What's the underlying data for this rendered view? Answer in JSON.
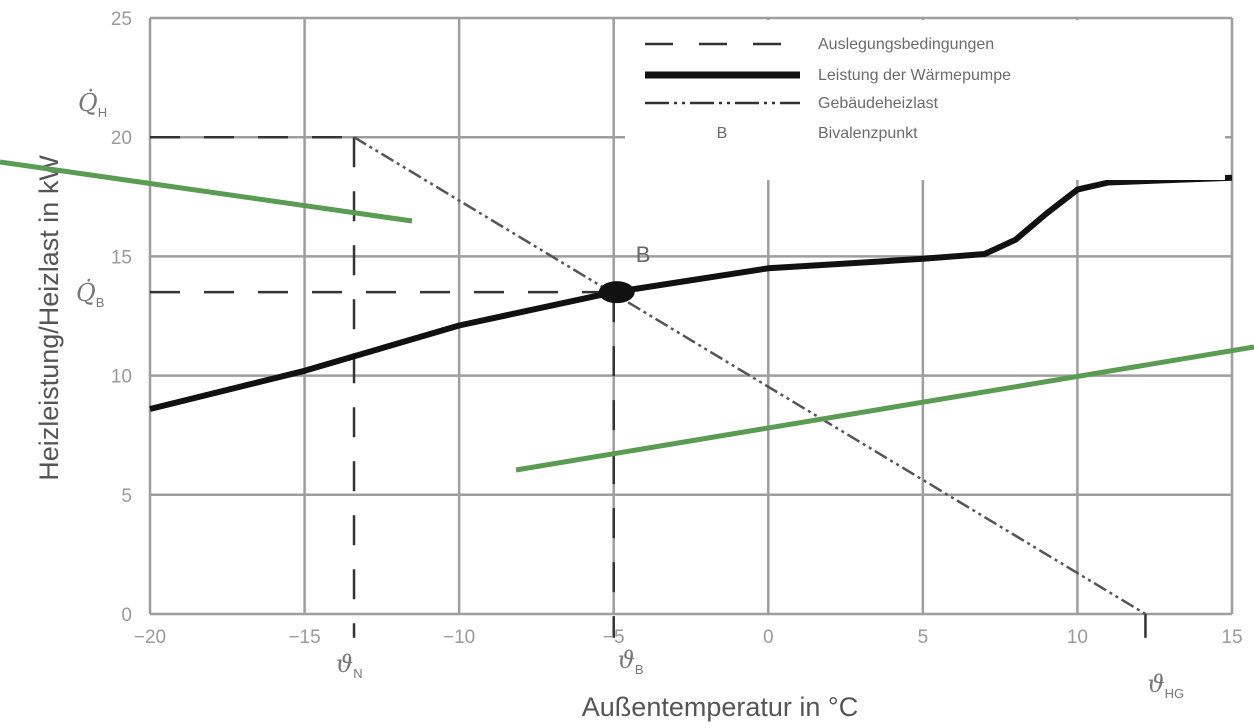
{
  "chart_data": {
    "type": "line",
    "xlabel": "Außentemperatur in °C",
    "ylabel": "Heizleistung/Heizlast in kW",
    "xlim": [
      -20,
      15
    ],
    "ylim": [
      0,
      25
    ],
    "x_ticks": [
      -20,
      -15,
      -10,
      -5,
      0,
      5,
      10,
      15
    ],
    "y_ticks": [
      0,
      5,
      10,
      15,
      20,
      25
    ],
    "grid": true,
    "legend_position": "top-right",
    "legend": [
      {
        "label": "Auslegungsbedingungen",
        "style": "dashed"
      },
      {
        "label": "Leistung der Wärmepumpe",
        "style": "solid-thick"
      },
      {
        "label": "Gebäudeheizlast",
        "style": "dash-dot"
      },
      {
        "label": "Bivalenzpunkt",
        "style": "marker",
        "marker": "B"
      }
    ],
    "series": [
      {
        "name": "Leistung der Wärmepumpe",
        "x": [
          -20,
          -15,
          -10,
          -5,
          0,
          5,
          7,
          8,
          9,
          10,
          11,
          15
        ],
        "y": [
          8.6,
          10.2,
          12.1,
          13.5,
          14.5,
          14.9,
          15.1,
          15.7,
          16.8,
          17.8,
          18.1,
          18.3
        ]
      },
      {
        "name": "Gebäudeheizlast",
        "x": [
          -13.4,
          12.2
        ],
        "y": [
          20.0,
          0.0
        ]
      },
      {
        "name": "Auslegungsbedingungen",
        "segments": [
          {
            "x": [
              -20,
              -13.4
            ],
            "y": [
              20,
              20
            ]
          },
          {
            "x": [
              -13.4,
              -13.4
            ],
            "y": [
              20,
              -1
            ]
          },
          {
            "x": [
              -20,
              -5
            ],
            "y": [
              13.5,
              13.5
            ]
          },
          {
            "x": [
              -5,
              -5
            ],
            "y": [
              13.5,
              -1
            ]
          },
          {
            "x": [
              12.2,
              12.2
            ],
            "y": [
              0,
              -1
            ]
          }
        ]
      }
    ],
    "bivalence_point": {
      "label": "B",
      "x": -5,
      "y": 13.5
    },
    "annotations": {
      "q_h": {
        "sym": "Q̇",
        "sub": "H",
        "y": 20
      },
      "q_b": {
        "sym": "Q̇",
        "sub": "B",
        "y": 13.5
      },
      "theta_n": {
        "sym": "ϑ",
        "sub": "N",
        "x": -13.4
      },
      "theta_b": {
        "sym": "ϑ",
        "sub": "B",
        "x": -5
      },
      "theta_hg": {
        "sym": "ϑ",
        "sub": "HG",
        "x": 12.2
      }
    },
    "overlay_lines_color": "#5a9c52"
  }
}
